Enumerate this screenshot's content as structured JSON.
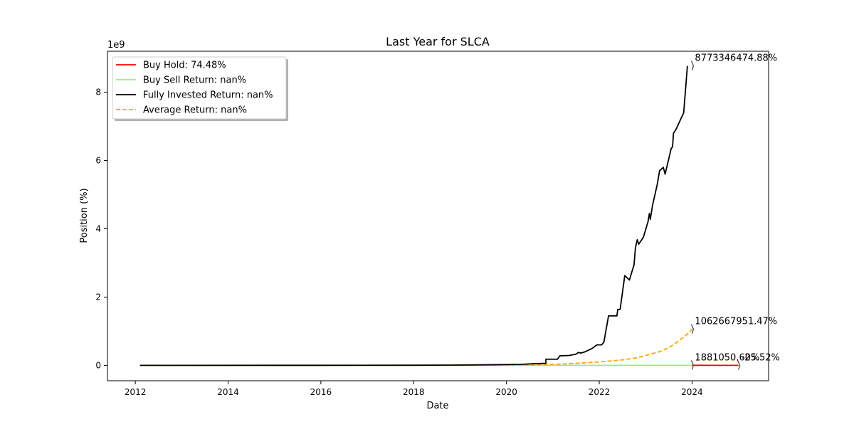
{
  "chart_data": {
    "type": "line",
    "title": "Last Year for SLCA",
    "xlabel": "Date",
    "ylabel": "Position (%)",
    "y_offset_text": "1e9",
    "xlim": [
      2011.4,
      2025.65
    ],
    "ylim": [
      -0.45,
      9.2
    ],
    "x_ticks": [
      2012,
      2014,
      2016,
      2018,
      2020,
      2022,
      2024
    ],
    "x_tick_labels": [
      "2012",
      "2014",
      "2016",
      "2018",
      "2020",
      "2022",
      "2024"
    ],
    "y_ticks": [
      0,
      2,
      4,
      6,
      8
    ],
    "y_tick_labels": [
      "0",
      "2",
      "4",
      "6",
      "8"
    ],
    "grid": false,
    "legend_position": "top-left",
    "series": [
      {
        "name": "Buy Hold: 74.48%",
        "color": "#ff0000",
        "style": "solid",
        "points": [
          [
            2024.0,
            0.0019
          ],
          [
            2025.0,
            0.0
          ]
        ]
      },
      {
        "name": "Buy Sell Return: nan%",
        "color": "#90ee90",
        "style": "solid",
        "points": [
          [
            2012.1,
            0.0
          ],
          [
            2024.0,
            0.0
          ]
        ]
      },
      {
        "name": "Fully Invested Return: nan%",
        "color": "#000000",
        "style": "solid",
        "points": [
          [
            2012.1,
            0.0
          ],
          [
            2016.0,
            0.002
          ],
          [
            2018.0,
            0.005
          ],
          [
            2019.0,
            0.01
          ],
          [
            2019.8,
            0.02
          ],
          [
            2020.3,
            0.03
          ],
          [
            2020.6,
            0.05
          ],
          [
            2020.85,
            0.06
          ],
          [
            2020.85,
            0.18
          ],
          [
            2021.1,
            0.18
          ],
          [
            2021.15,
            0.28
          ],
          [
            2021.35,
            0.29
          ],
          [
            2021.5,
            0.33
          ],
          [
            2021.55,
            0.38
          ],
          [
            2021.6,
            0.36
          ],
          [
            2021.7,
            0.4
          ],
          [
            2021.85,
            0.5
          ],
          [
            2021.95,
            0.6
          ],
          [
            2022.05,
            0.6
          ],
          [
            2022.1,
            0.68
          ],
          [
            2022.2,
            1.45
          ],
          [
            2022.35,
            1.45
          ],
          [
            2022.38,
            1.45
          ],
          [
            2022.4,
            1.64
          ],
          [
            2022.45,
            1.64
          ],
          [
            2022.55,
            2.63
          ],
          [
            2022.65,
            2.5
          ],
          [
            2022.75,
            2.95
          ],
          [
            2022.78,
            3.45
          ],
          [
            2022.82,
            3.68
          ],
          [
            2022.85,
            3.55
          ],
          [
            2022.95,
            3.75
          ],
          [
            2023.05,
            4.2
          ],
          [
            2023.08,
            4.45
          ],
          [
            2023.1,
            4.28
          ],
          [
            2023.15,
            4.7
          ],
          [
            2023.25,
            5.3
          ],
          [
            2023.3,
            5.7
          ],
          [
            2023.38,
            5.8
          ],
          [
            2023.42,
            5.6
          ],
          [
            2023.55,
            6.35
          ],
          [
            2023.58,
            6.4
          ],
          [
            2023.6,
            6.8
          ],
          [
            2023.65,
            6.9
          ],
          [
            2023.82,
            7.4
          ],
          [
            2023.9,
            8.77
          ]
        ]
      },
      {
        "name": "Average Return: nan%",
        "color": "#ffa500",
        "style": "dashed",
        "points": [
          [
            2012.1,
            0.0
          ],
          [
            2018.0,
            0.001
          ],
          [
            2020.0,
            0.005
          ],
          [
            2020.5,
            0.01
          ],
          [
            2021.0,
            0.03
          ],
          [
            2021.5,
            0.06
          ],
          [
            2022.0,
            0.1
          ],
          [
            2022.5,
            0.16
          ],
          [
            2022.8,
            0.22
          ],
          [
            2023.0,
            0.29
          ],
          [
            2023.3,
            0.4
          ],
          [
            2023.5,
            0.52
          ],
          [
            2023.7,
            0.7
          ],
          [
            2023.9,
            0.92
          ],
          [
            2024.0,
            1.06
          ]
        ]
      }
    ],
    "annotations": [
      {
        "text": "8773346474.88%",
        "x": 2024.0,
        "y": 8.77,
        "color": "#000000"
      },
      {
        "text": "1062667951.47%",
        "x": 2024.0,
        "y": 1.06,
        "color": "#ffa500"
      },
      {
        "text": "1881050.60%",
        "x": 2024.0,
        "y": 0.0,
        "color": "#ff0000"
      },
      {
        "text": "-25.52%",
        "x": 2025.0,
        "y": 0.0,
        "color": "#ff0000"
      }
    ]
  }
}
